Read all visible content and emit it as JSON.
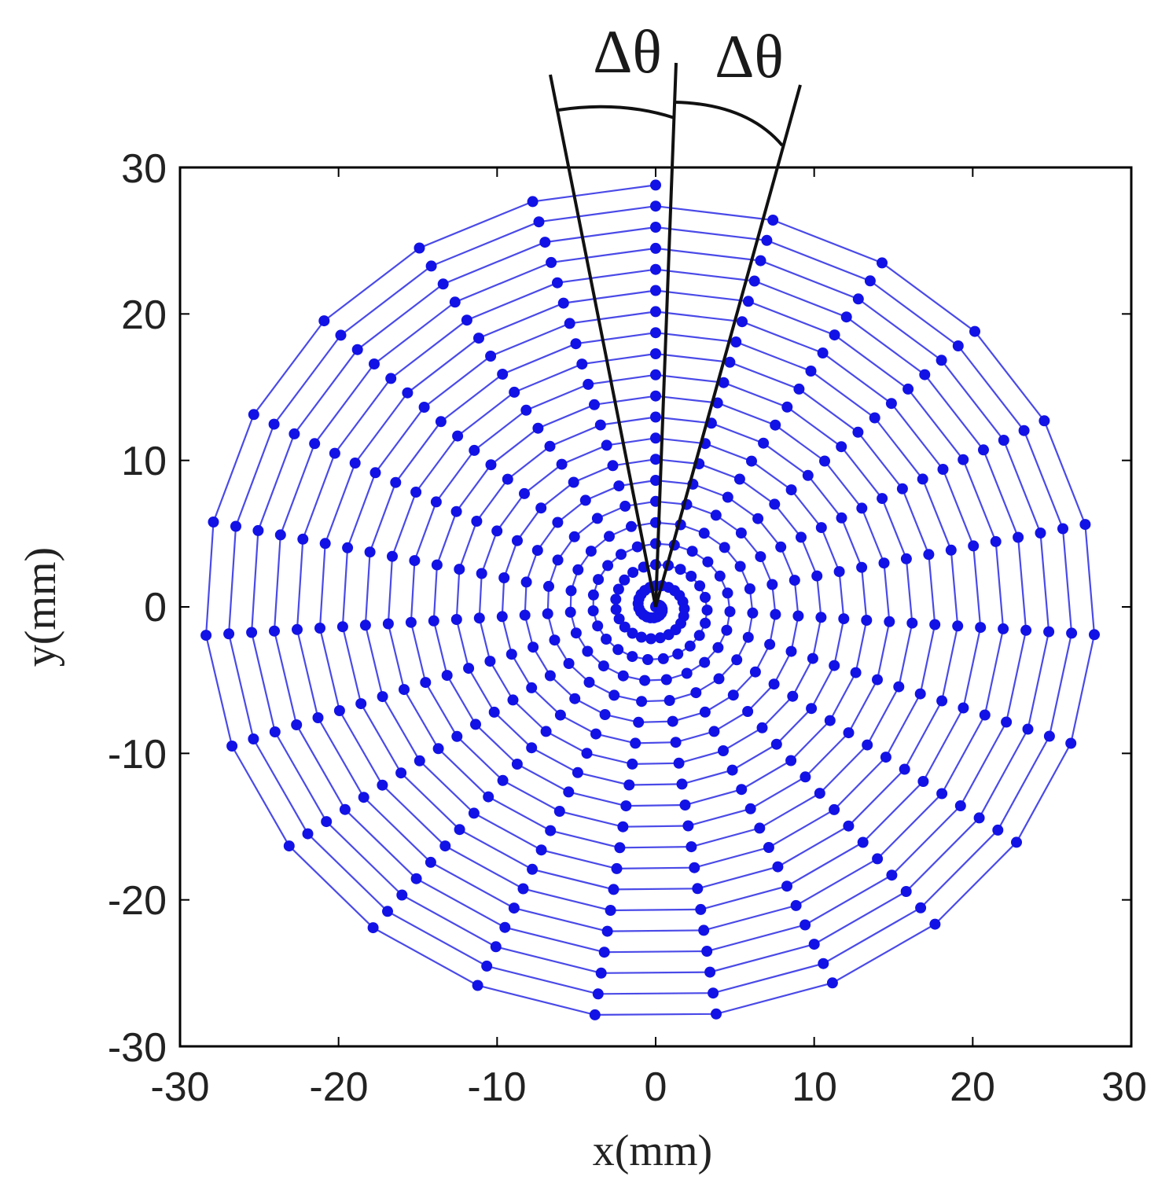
{
  "chart_data": {
    "type": "scatter",
    "subtype": "spiral sampling trajectory",
    "title": "",
    "xlabel": "x(mm)",
    "ylabel": "y(mm)",
    "xlim": [
      -30,
      30
    ],
    "ylim": [
      -30,
      30
    ],
    "xticks": [
      "-30",
      "-20",
      "-10",
      "0",
      "10",
      "20",
      "30"
    ],
    "yticks": [
      "30",
      "20",
      "10",
      "0",
      "-10",
      "-20",
      "-30"
    ],
    "grid": false,
    "legend": "none",
    "series": [
      {
        "marker": "filled-circle",
        "line": "solid",
        "color": "#1f1fe0",
        "spiral": {
          "turns": 20,
          "max_radius_mm": 28.8,
          "points_per_turn": 23,
          "start_angle_deg": 90,
          "direction": "clockwise"
        }
      }
    ],
    "annotations": [
      {
        "label": "Δθ",
        "angle_from_vertical_deg": -8,
        "side": "left"
      },
      {
        "label": "Δθ",
        "angle_from_vertical_deg": 8,
        "side": "right"
      }
    ],
    "colors": {
      "trajectory": "#4a4ae8",
      "points": "#1212e6",
      "annotation_lines": "#111111",
      "axes": "#000000"
    }
  }
}
